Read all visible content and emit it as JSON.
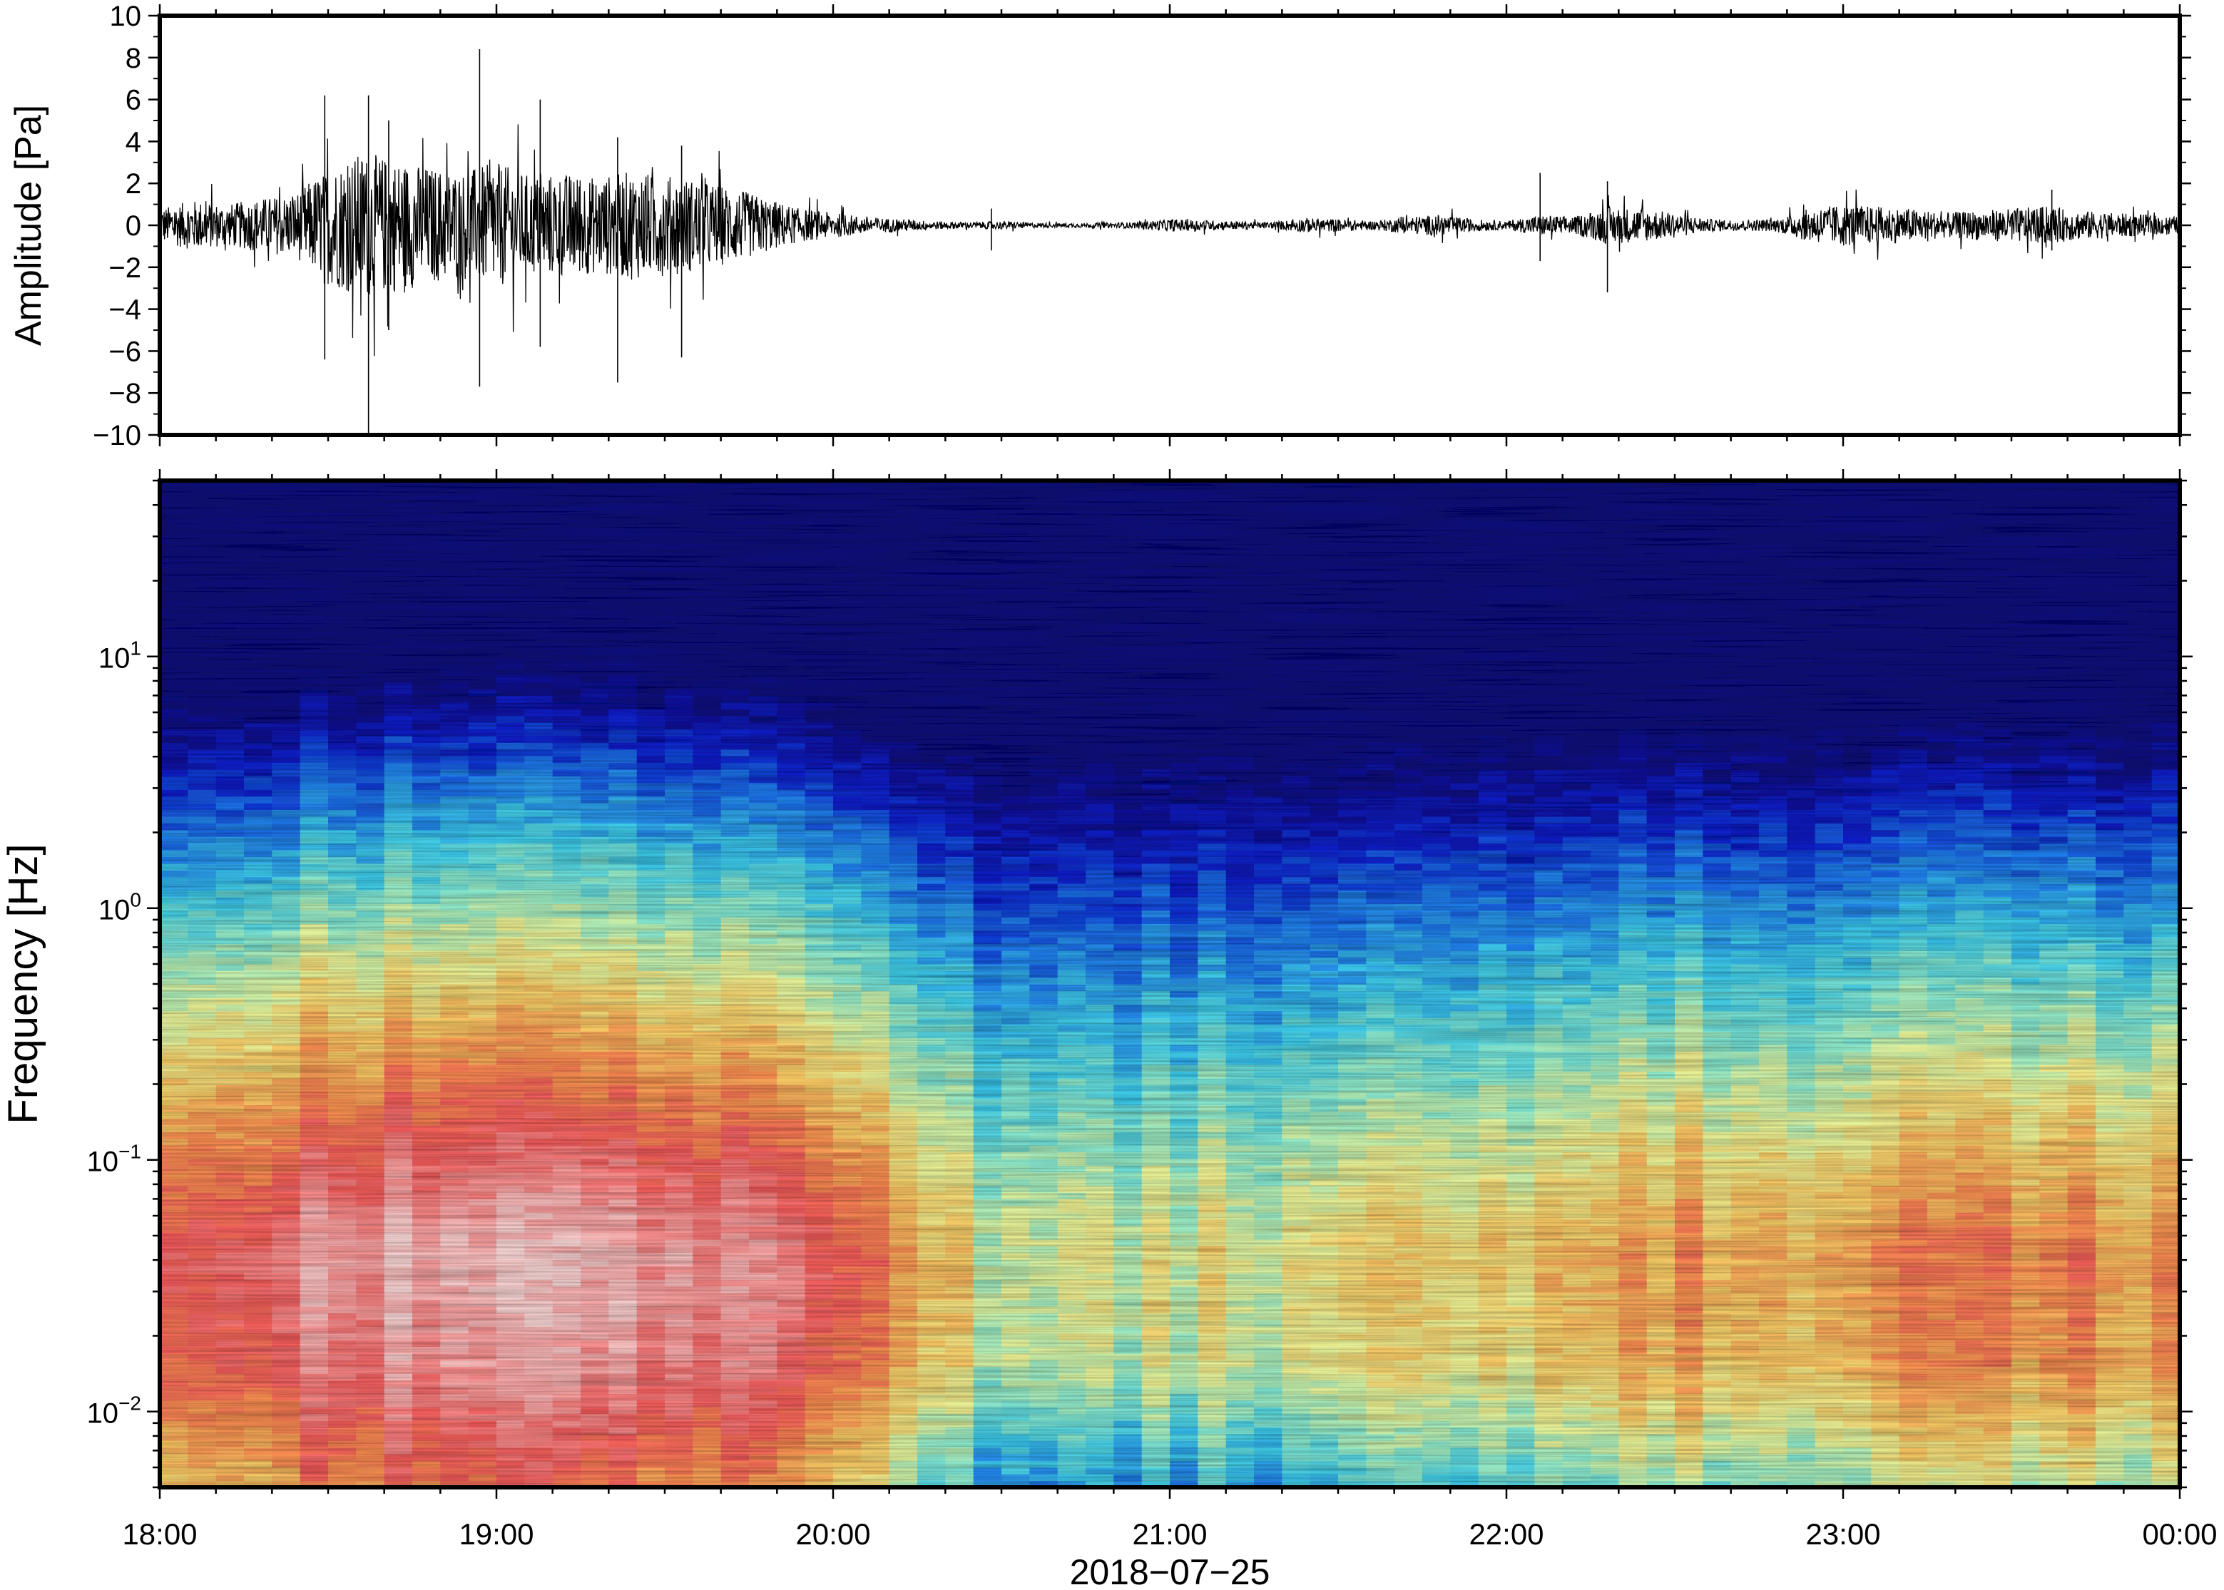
{
  "figure": {
    "date_label": "2018−07−25"
  },
  "chart_data": [
    {
      "type": "line",
      "panel": "waveform",
      "ylabel": "Amplitude [Pa]",
      "xlabel": "",
      "ylim": [
        -10,
        10
      ],
      "yticks": [
        10,
        8,
        6,
        4,
        2,
        0,
        -2,
        -4,
        -6,
        -8,
        -10
      ],
      "ytick_labels": [
        "10",
        "8",
        "6",
        "4",
        "2",
        "0",
        "−2",
        "−4",
        "−6",
        "−8",
        "−10"
      ],
      "xlim_hours": [
        18,
        24
      ],
      "xticks_hours": [
        18,
        19,
        20,
        21,
        22,
        23,
        24
      ],
      "xtick_labels": [
        "18:00",
        "19:00",
        "20:00",
        "21:00",
        "22:00",
        "23:00",
        "00:00"
      ],
      "envelope": {
        "t_hours": [
          18.0,
          18.1,
          18.2,
          18.3,
          18.4,
          18.5,
          18.6,
          18.7,
          18.8,
          18.9,
          19.0,
          19.1,
          19.2,
          19.3,
          19.4,
          19.5,
          19.6,
          19.7,
          19.8,
          19.9,
          20.0,
          20.1,
          20.2,
          20.3,
          20.4,
          20.5,
          20.6,
          20.7,
          20.8,
          20.9,
          21.0,
          21.1,
          21.2,
          21.3,
          21.4,
          21.5,
          21.6,
          21.7,
          21.8,
          21.9,
          22.0,
          22.1,
          22.2,
          22.3,
          22.4,
          22.5,
          22.6,
          22.7,
          22.8,
          22.9,
          23.0,
          23.1,
          23.2,
          23.3,
          23.4,
          23.5,
          23.6,
          23.7,
          23.8,
          23.9,
          24.0
        ],
        "amplitude": [
          0.8,
          1.2,
          1.0,
          1.3,
          1.5,
          2.8,
          3.5,
          3.2,
          2.8,
          2.6,
          3.0,
          2.4,
          2.5,
          2.3,
          2.6,
          2.4,
          2.2,
          1.8,
          1.3,
          0.8,
          0.6,
          0.4,
          0.3,
          0.2,
          0.15,
          0.2,
          0.12,
          0.1,
          0.12,
          0.15,
          0.3,
          0.25,
          0.2,
          0.15,
          0.35,
          0.3,
          0.2,
          0.4,
          0.5,
          0.3,
          0.2,
          0.5,
          0.4,
          0.9,
          0.8,
          0.6,
          0.3,
          0.25,
          0.3,
          0.8,
          1.0,
          0.9,
          0.8,
          0.6,
          0.7,
          0.8,
          0.9,
          0.7,
          0.6,
          0.5,
          0.4
        ]
      },
      "spikes": [
        {
          "t": 18.49,
          "max": 6.2,
          "min": -6.4
        },
        {
          "t": 18.62,
          "max": 6.2,
          "min": -10.0
        },
        {
          "t": 18.68,
          "max": 5.0,
          "min": -5.0
        },
        {
          "t": 18.95,
          "max": 8.4,
          "min": -7.7
        },
        {
          "t": 19.13,
          "max": 6.0,
          "min": -5.8
        },
        {
          "t": 19.36,
          "max": 4.2,
          "min": -7.5
        },
        {
          "t": 19.55,
          "max": 3.8,
          "min": -6.3
        },
        {
          "t": 20.47,
          "max": 0.8,
          "min": -1.2
        },
        {
          "t": 22.1,
          "max": 2.5,
          "min": -1.7
        },
        {
          "t": 22.3,
          "max": 2.1,
          "min": -3.2
        },
        {
          "t": 23.62,
          "max": 1.7,
          "min": -1.2
        }
      ]
    },
    {
      "type": "heatmap",
      "panel": "spectrogram",
      "ylabel": "Frequency [Hz]",
      "xlabel": "2018−07−25",
      "y_scale": "log",
      "ylim_hz": [
        0.005,
        50
      ],
      "yticks_hz": [
        0.01,
        0.1,
        1,
        10
      ],
      "ytick_labels": [
        {
          "base": "10",
          "exp": "−2"
        },
        {
          "base": "10",
          "exp": "−1"
        },
        {
          "base": "10",
          "exp": "0"
        },
        {
          "base": "10",
          "exp": "1"
        }
      ],
      "xlim_hours": [
        18,
        24
      ],
      "xticks_hours": [
        18,
        19,
        20,
        21,
        22,
        23,
        24
      ],
      "xtick_labels": [
        "18:00",
        "19:00",
        "20:00",
        "21:00",
        "22:00",
        "23:00",
        "00:00"
      ],
      "colormap": [
        "#0a0a7a",
        "#0a1ec8",
        "#1e78e6",
        "#3cc8e6",
        "#8ce6c8",
        "#e6f096",
        "#f5c864",
        "#f58c50",
        "#f05a5a",
        "#f59696",
        "#f5d2d2"
      ],
      "intensity_profile": {
        "t_hours": [
          18.0,
          18.25,
          18.5,
          18.75,
          19.0,
          19.25,
          19.5,
          19.75,
          20.0,
          20.25,
          20.5,
          20.75,
          21.0,
          21.25,
          21.5,
          21.75,
          22.0,
          22.25,
          22.5,
          22.75,
          23.0,
          23.25,
          23.5,
          23.75,
          24.0
        ],
        "level": [
          0.75,
          0.85,
          0.92,
          0.98,
          0.98,
          0.97,
          0.96,
          0.93,
          0.8,
          0.62,
          0.5,
          0.46,
          0.5,
          0.52,
          0.56,
          0.58,
          0.56,
          0.66,
          0.68,
          0.62,
          0.7,
          0.71,
          0.72,
          0.72,
          0.68
        ]
      }
    }
  ]
}
